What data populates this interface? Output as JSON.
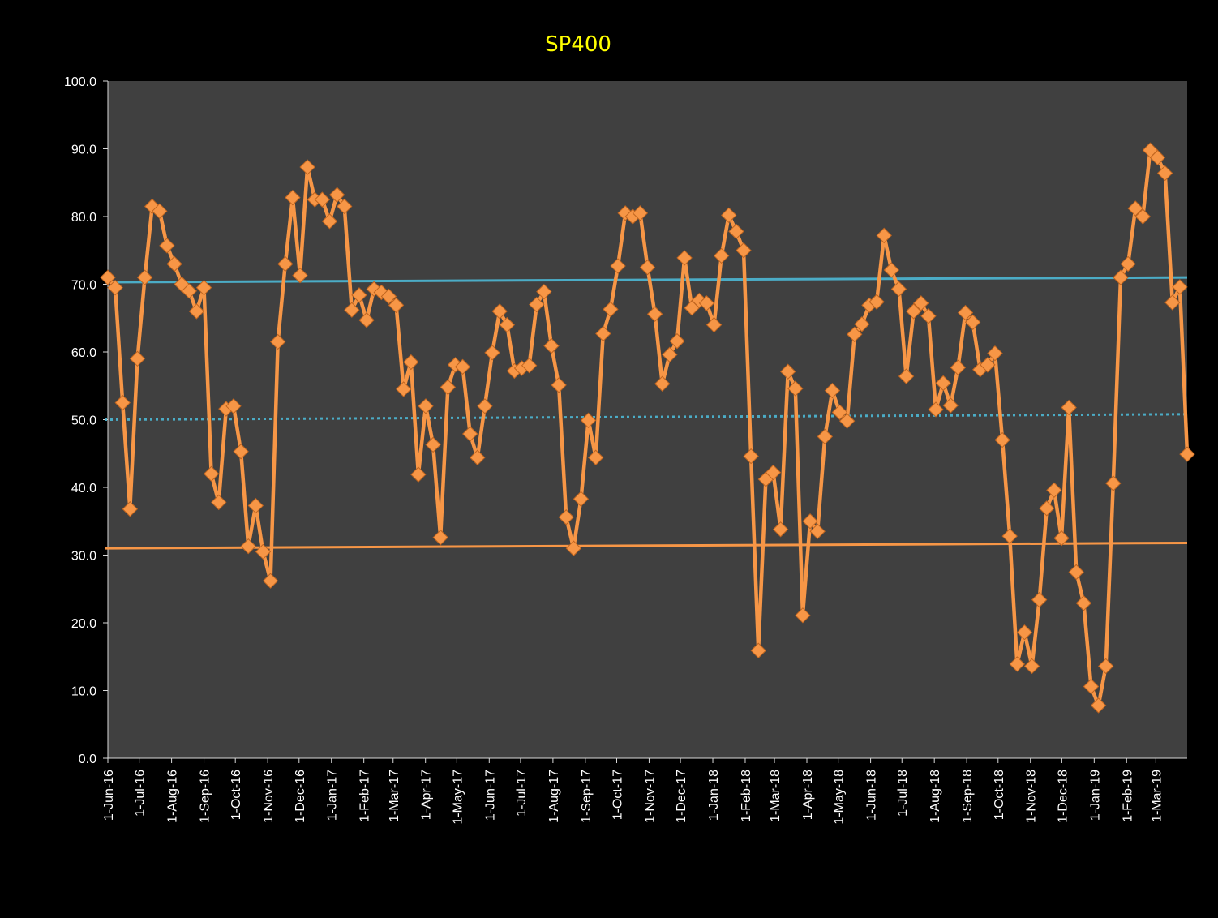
{
  "chart_data": {
    "type": "line",
    "title": "SP400",
    "xlabel": "",
    "ylabel": "",
    "ylim": [
      0,
      100
    ],
    "y_ticks": [
      "0.0",
      "10.0",
      "20.0",
      "30.0",
      "40.0",
      "50.0",
      "60.0",
      "70.0",
      "80.0",
      "90.0",
      "100.0"
    ],
    "x_tick_labels": [
      "1-Jun-16",
      "1-Jul-16",
      "1-Aug-16",
      "1-Sep-16",
      "1-Oct-16",
      "1-Nov-16",
      "1-Dec-16",
      "1-Jan-17",
      "1-Feb-17",
      "1-Mar-17",
      "1-Apr-17",
      "1-May-17",
      "1-Jun-17",
      "1-Jul-17",
      "1-Aug-17",
      "1-Sep-17",
      "1-Oct-17",
      "1-Nov-17",
      "1-Dec-17",
      "1-Jan-18",
      "1-Feb-18",
      "1-Mar-18",
      "1-Apr-18",
      "1-May-18",
      "1-Jun-18",
      "1-Jul-18",
      "1-Aug-18",
      "1-Sep-18",
      "1-Oct-18",
      "1-Nov-18",
      "1-Dec-18",
      "1-Jan-19",
      "1-Feb-19",
      "1-Mar-19"
    ],
    "x_range": [
      "2016-06-01",
      "2019-03-31"
    ],
    "grid": false,
    "series": [
      {
        "color": "#F79646",
        "marker": "diamond",
        "values": [
          71.0,
          69.5,
          52.5,
          36.8,
          59.0,
          71.0,
          81.5,
          80.8,
          75.7,
          73.0,
          70.0,
          69.0,
          66.0,
          69.5,
          42.0,
          37.8,
          51.6,
          52.0,
          45.3,
          31.3,
          37.3,
          30.5,
          26.2,
          61.5,
          73.0,
          82.8,
          71.3,
          87.3,
          82.5,
          82.5,
          79.3,
          83.2,
          81.5,
          66.2,
          68.4,
          64.7,
          69.3,
          68.8,
          68.2,
          66.9,
          54.5,
          58.5,
          41.9,
          52.0,
          46.3,
          32.6,
          54.8,
          58.1,
          57.8,
          47.9,
          44.4,
          52.0,
          59.9,
          66.0,
          64.0,
          57.2,
          57.6,
          58.0,
          67.0,
          68.9,
          60.9,
          55.1,
          35.6,
          31.0,
          38.3,
          49.9,
          44.4,
          62.7,
          66.3,
          72.7,
          80.5,
          80.0,
          80.5,
          72.5,
          65.6,
          55.3,
          59.6,
          61.6,
          73.9,
          66.5,
          67.6,
          67.2,
          64.0,
          74.2,
          80.2,
          77.8,
          75.0,
          44.6,
          15.9,
          41.2,
          42.2,
          33.8,
          57.1,
          54.6,
          21.1,
          35.0,
          33.5,
          47.5,
          54.3,
          51.1,
          49.8,
          62.6,
          64.1,
          66.9,
          67.4,
          77.2,
          72.1,
          69.3,
          56.4,
          66.0,
          67.2,
          65.3,
          51.5,
          55.4,
          52.1,
          57.7,
          65.8,
          64.4,
          57.4,
          58.1,
          59.8,
          47.0,
          32.8,
          13.9,
          18.6,
          13.6,
          23.4,
          36.9,
          39.6,
          32.5,
          51.8,
          27.5,
          22.9,
          10.6,
          7.8,
          13.6,
          40.6,
          71.0,
          73.0,
          81.2,
          80.0,
          89.8,
          88.7,
          86.4,
          67.3,
          69.6,
          44.9
        ]
      }
    ],
    "trend_lines": [
      {
        "style": "solid",
        "color": "#4BACC6",
        "y_start": 70.3,
        "y_end": 71.0
      },
      {
        "style": "dotted",
        "color": "#4BACC6",
        "y_start": 50.0,
        "y_end": 50.8
      },
      {
        "style": "solid",
        "color": "#F79646",
        "y_start": 31.0,
        "y_end": 31.8
      }
    ],
    "colors": {
      "background": "#000000",
      "plot_area": "#404040",
      "title": "#FFFF00",
      "axis_text": "#FFFFFF"
    }
  }
}
